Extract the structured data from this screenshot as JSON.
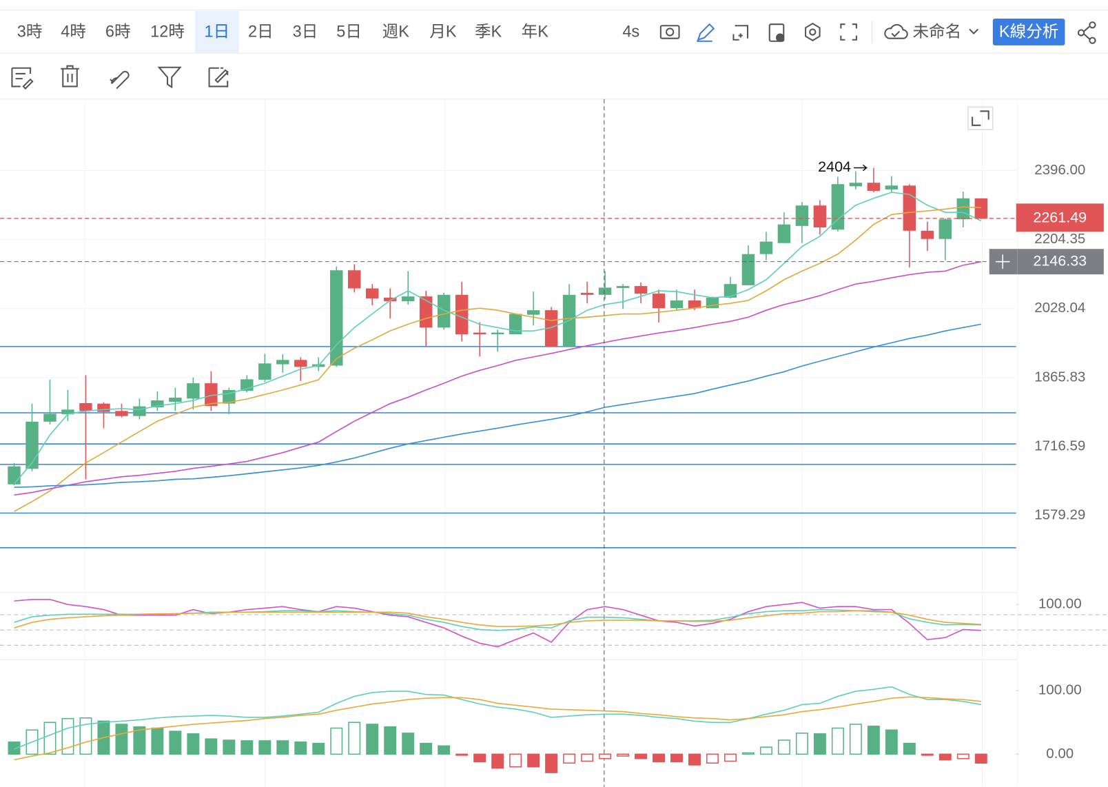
{
  "toolbar": {
    "timeframes": [
      "3時",
      "4時",
      "6時",
      "12時",
      "1日",
      "2日",
      "3日",
      "5日",
      "週K",
      "月K",
      "季K",
      "年K"
    ],
    "selected_index": 4,
    "refresh": "4s",
    "layout_name": "未命名",
    "analysis_button": "K線分析"
  },
  "chart_data": [
    {
      "type": "candlestick",
      "log_scale": true,
      "grid": true,
      "ylim": [
        1449,
        2612
      ],
      "yticks": [
        {
          "value": 2396,
          "label": "2396.00"
        },
        2204.35,
        2028.04,
        1865.83,
        1716.59,
        1579.29
      ],
      "up_color": "#58b185",
      "down_color": "#e15556",
      "candles": {
        "open": [
          1640,
          1671,
          1769,
          1785,
          1809,
          1808,
          1792,
          1781,
          1800,
          1812,
          1819,
          1853,
          1808,
          1836,
          1861,
          1896,
          1906,
          1890,
          1893,
          2124,
          2078,
          2055,
          2046,
          2058,
          1982,
          2062,
          1970,
          1966,
          1966,
          2013,
          2024,
          1937,
          2067,
          2062,
          2079,
          2084,
          2065,
          2029,
          2048,
          2029,
          2055,
          2086,
          2166,
          2195,
          2241,
          2297,
          2231,
          2351,
          2361,
          2342,
          2353,
          2228,
          2206,
          2259,
          2317
        ],
        "high": [
          1683,
          1808,
          1861,
          1838,
          1871,
          1811,
          1808,
          1819,
          1835,
          1843,
          1866,
          1880,
          1843,
          1871,
          1920,
          1919,
          1912,
          1912,
          2134,
          2140,
          2089,
          2078,
          2122,
          2072,
          2067,
          2095,
          1995,
          1977,
          2015,
          2070,
          2032,
          2089,
          2095,
          2122,
          2089,
          2093,
          2075,
          2075,
          2075,
          2058,
          2107,
          2189,
          2225,
          2278,
          2307,
          2312,
          2378,
          2394,
          2404,
          2380,
          2357,
          2253,
          2262,
          2336,
          2317
        ],
        "low": [
          1638,
          1666,
          1763,
          1770,
          1650,
          1755,
          1778,
          1774,
          1792,
          1792,
          1795,
          1792,
          1785,
          1833,
          1856,
          1877,
          1858,
          1880,
          1890,
          2068,
          2036,
          2004,
          2038,
          1937,
          1977,
          1949,
          1914,
          1925,
          1966,
          1987,
          1937,
          1937,
          2041,
          2051,
          2027,
          2041,
          1994,
          2024,
          2024,
          2029,
          2053,
          2086,
          2150,
          2195,
          2195,
          2217,
          2226,
          2342,
          2334,
          2332,
          2131,
          2174,
          2150,
          2237,
          2259
        ],
        "close": [
          1676,
          1769,
          1786,
          1795,
          1792,
          1790,
          1781,
          1802,
          1815,
          1821,
          1853,
          1803,
          1838,
          1862,
          1898,
          1906,
          1890,
          1896,
          2124,
          2078,
          2053,
          2046,
          2058,
          1982,
          2062,
          1966,
          1966,
          1970,
          2015,
          2024,
          1937,
          2062,
          2062,
          2080,
          2084,
          2065,
          2029,
          2048,
          2029,
          2055,
          2089,
          2166,
          2199,
          2245,
          2297,
          2237,
          2357,
          2361,
          2338,
          2353,
          2228,
          2206,
          2259,
          2317,
          2261.49
        ]
      },
      "series": [
        {
          "color": "#5fcfb8",
          "values": [
            1641,
            1683,
            1741,
            1785,
            1792,
            1795,
            1797,
            1795,
            1803,
            1808,
            1815,
            1826,
            1830,
            1841,
            1853,
            1869,
            1885,
            1893,
            1941,
            1982,
            2015,
            2048,
            2072,
            2048,
            2024,
            2007,
            1990,
            1982,
            1974,
            1974,
            1982,
            1999,
            2024,
            2038,
            2045,
            2058,
            2072,
            2070,
            2062,
            2055,
            2058,
            2075,
            2100,
            2142,
            2186,
            2213,
            2259,
            2298,
            2317,
            2334,
            2328,
            2298,
            2278,
            2278,
            2255
          ]
        },
        {
          "color": "#e0a93c",
          "values": [
            1587,
            1606,
            1627,
            1655,
            1683,
            1704,
            1726,
            1748,
            1770,
            1785,
            1800,
            1808,
            1811,
            1818,
            1828,
            1838,
            1849,
            1861,
            1909,
            1933,
            1953,
            1974,
            1990,
            2004,
            2015,
            2024,
            2029,
            2024,
            2015,
            2007,
            1999,
            2004,
            2007,
            2011,
            2015,
            2015,
            2019,
            2024,
            2029,
            2036,
            2041,
            2048,
            2072,
            2100,
            2122,
            2142,
            2166,
            2203,
            2245,
            2272,
            2278,
            2282,
            2287,
            2293,
            2291
          ]
        },
        {
          "color": "#c84fc8",
          "values": [
            1619,
            1624,
            1631,
            1638,
            1645,
            1650,
            1655,
            1658,
            1662,
            1666,
            1672,
            1676,
            1681,
            1686,
            1695,
            1704,
            1715,
            1726,
            1748,
            1770,
            1789,
            1808,
            1822,
            1838,
            1853,
            1869,
            1882,
            1893,
            1905,
            1913,
            1921,
            1930,
            1939,
            1947,
            1955,
            1962,
            1969,
            1975,
            1982,
            1990,
            1997,
            2007,
            2024,
            2038,
            2048,
            2060,
            2075,
            2089,
            2096,
            2105,
            2113,
            2119,
            2122,
            2137,
            2146
          ]
        },
        {
          "color": "#3a8fd0",
          "values": [
            1634,
            1635,
            1637,
            1638,
            1639,
            1641,
            1644,
            1645,
            1647,
            1650,
            1651,
            1654,
            1657,
            1661,
            1665,
            1669,
            1673,
            1678,
            1685,
            1693,
            1703,
            1713,
            1722,
            1729,
            1736,
            1743,
            1749,
            1755,
            1762,
            1768,
            1774,
            1781,
            1790,
            1800,
            1806,
            1812,
            1818,
            1824,
            1830,
            1840,
            1849,
            1858,
            1869,
            1879,
            1892,
            1903,
            1914,
            1925,
            1936,
            1946,
            1956,
            1964,
            1974,
            1982,
            1990
          ]
        }
      ],
      "hlines": [
        1937,
        1788,
        1722,
        1680,
        1584,
        1519
      ],
      "hline_color": "#3b82d6",
      "last_price": 2261.49,
      "last_price_color": "#e15556",
      "crosshair_price": 2146.33,
      "high_label": "2404"
    },
    {
      "type": "line",
      "ylim": [
        -4,
        121
      ],
      "yticks": [
        {
          "value": 100,
          "label": "100.00"
        }
      ],
      "ref_lines": [
        80,
        50,
        20
      ],
      "series": [
        {
          "color": "#d452c8",
          "values": [
            107,
            110,
            110,
            100,
            96,
            90,
            79,
            79,
            79,
            79,
            90,
            82,
            85,
            90,
            93,
            96,
            90,
            86,
            96,
            93,
            86,
            79,
            76,
            65,
            54,
            38,
            24,
            17,
            31,
            44,
            26,
            65,
            90,
            96,
            90,
            79,
            68,
            65,
            58,
            63,
            71,
            86,
            96,
            100,
            104,
            93,
            96,
            96,
            90,
            90,
            63,
            31,
            35,
            51,
            49
          ]
        },
        {
          "color": "#5fcfb8",
          "values": [
            65,
            76,
            79,
            81,
            81,
            81,
            81,
            81,
            81,
            82,
            83,
            85,
            85,
            85,
            86,
            88,
            88,
            86,
            88,
            86,
            85,
            82,
            79,
            71,
            65,
            57,
            51,
            49,
            51,
            56,
            54,
            68,
            75,
            75,
            74,
            71,
            68,
            68,
            68,
            69,
            75,
            82,
            86,
            88,
            88,
            90,
            89,
            88,
            88,
            85,
            72,
            65,
            60,
            61,
            60
          ]
        },
        {
          "color": "#e8a93a",
          "values": [
            54,
            65,
            71,
            74,
            76,
            78,
            79,
            81,
            82,
            82,
            83,
            83,
            85,
            85,
            85,
            85,
            85,
            85,
            85,
            85,
            85,
            85,
            83,
            76,
            71,
            65,
            60,
            57,
            57,
            58,
            60,
            65,
            68,
            69,
            69,
            69,
            68,
            68,
            67,
            67,
            69,
            74,
            78,
            82,
            83,
            86,
            86,
            88,
            86,
            85,
            79,
            71,
            65,
            63,
            61
          ]
        }
      ]
    },
    {
      "type": "macd",
      "ylim": [
        -48,
        141
      ],
      "yticks": [
        {
          "value": 100,
          "label": "100.00"
        },
        {
          "value": 0,
          "label": "0.00"
        }
      ],
      "up_color": "#58b185",
      "down_color": "#e15556",
      "values": [
        19,
        38,
        50,
        56,
        57,
        52,
        47,
        43,
        41,
        36,
        32,
        24,
        22,
        21,
        21,
        21,
        19,
        17,
        41,
        50,
        47,
        43,
        33,
        17,
        13,
        -1,
        -12,
        -22,
        -20,
        -20,
        -29,
        -14,
        -11,
        -7,
        -3,
        -7,
        -12,
        -12,
        -17,
        -14,
        -11,
        2,
        11,
        22,
        33,
        32,
        41,
        47,
        44,
        38,
        17,
        -1,
        -9,
        -7,
        -14
      ],
      "series": [
        {
          "color": "#5fcfb8",
          "values": [
            8,
            19,
            30,
            41,
            47,
            50,
            52,
            54,
            57,
            59,
            60,
            61,
            60,
            58,
            58,
            60,
            63,
            66,
            80,
            91,
            97,
            99,
            99,
            94,
            93,
            86,
            79,
            74,
            71,
            66,
            58,
            60,
            62,
            63,
            63,
            61,
            58,
            56,
            52,
            50,
            50,
            56,
            63,
            69,
            78,
            80,
            91,
            99,
            102,
            106,
            94,
            86,
            86,
            83,
            78
          ]
        },
        {
          "color": "#e8a93a",
          "values": [
            -9,
            -3,
            2,
            10,
            19,
            26,
            32,
            38,
            41,
            44,
            47,
            49,
            51,
            53,
            56,
            58,
            61,
            63,
            69,
            74,
            79,
            82,
            86,
            88,
            89,
            89,
            86,
            80,
            77,
            74,
            71,
            70,
            69,
            68,
            67,
            64,
            62,
            59,
            57,
            56,
            54,
            56,
            59,
            62,
            67,
            70,
            74,
            79,
            83,
            88,
            90,
            89,
            87,
            86,
            83
          ]
        }
      ]
    }
  ]
}
